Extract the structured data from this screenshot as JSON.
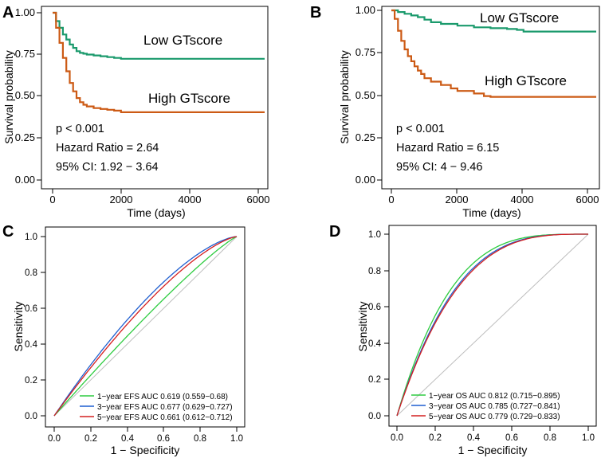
{
  "panels": {
    "A": "A",
    "B": "B",
    "C": "C",
    "D": "D"
  },
  "chart_data": [
    {
      "id": "A",
      "type": "line",
      "subtype": "kaplan-meier",
      "xlabel": "Time (days)",
      "ylabel": "Survival probability",
      "xlim": [
        0,
        6200
      ],
      "ylim": [
        0,
        1
      ],
      "xticks": [
        "0",
        "2000",
        "4000",
        "6000"
      ],
      "yticks": [
        "0.00",
        "0.25",
        "0.50",
        "0.75",
        "1.00"
      ],
      "series": [
        {
          "name": "Low GTscore",
          "color": "#1a9a6c",
          "x": [
            0,
            100,
            200,
            300,
            400,
            500,
            600,
            700,
            800,
            900,
            1000,
            1200,
            1400,
            1600,
            1800,
            2000,
            3000,
            4000,
            5000,
            6200
          ],
          "y": [
            1.0,
            0.95,
            0.91,
            0.87,
            0.84,
            0.81,
            0.79,
            0.77,
            0.76,
            0.755,
            0.75,
            0.745,
            0.74,
            0.735,
            0.73,
            0.725,
            0.725,
            0.725,
            0.725,
            0.725
          ]
        },
        {
          "name": "High GTscore",
          "color": "#cc5a14",
          "x": [
            0,
            100,
            200,
            300,
            400,
            500,
            600,
            700,
            800,
            900,
            1000,
            1200,
            1400,
            1600,
            1800,
            2000,
            3000,
            4000,
            5000,
            6200
          ],
          "y": [
            1.0,
            0.91,
            0.82,
            0.73,
            0.65,
            0.58,
            0.53,
            0.49,
            0.465,
            0.45,
            0.44,
            0.43,
            0.425,
            0.42,
            0.415,
            0.405,
            0.405,
            0.405,
            0.405,
            0.405
          ]
        }
      ],
      "annotations": [
        "p < 0.001",
        "Hazard Ratio = 2.64",
        "95% CI: 1.92 − 3.64"
      ]
    },
    {
      "id": "B",
      "type": "line",
      "subtype": "kaplan-meier",
      "xlabel": "Time (days)",
      "ylabel": "Survival probability",
      "xlim": [
        0,
        6200
      ],
      "ylim": [
        0,
        1
      ],
      "xticks": [
        "0",
        "2000",
        "4000",
        "6000"
      ],
      "yticks": [
        "0.00",
        "0.25",
        "0.50",
        "0.75",
        "1.00"
      ],
      "series": [
        {
          "name": "Low GTscore",
          "color": "#1a9a6c",
          "x": [
            0,
            200,
            400,
            600,
            800,
            1000,
            1200,
            1500,
            2000,
            2500,
            3000,
            3500,
            3800,
            4000,
            5000,
            6200
          ],
          "y": [
            1.0,
            0.99,
            0.98,
            0.97,
            0.96,
            0.945,
            0.93,
            0.92,
            0.91,
            0.9,
            0.895,
            0.89,
            0.885,
            0.875,
            0.875,
            0.875
          ]
        },
        {
          "name": "High GTscore",
          "color": "#cc5a14",
          "x": [
            0,
            100,
            200,
            300,
            400,
            500,
            600,
            700,
            800,
            900,
            1000,
            1200,
            1500,
            1800,
            2000,
            2500,
            2800,
            3000,
            4000,
            5000,
            6200
          ],
          "y": [
            1.0,
            0.95,
            0.88,
            0.82,
            0.77,
            0.73,
            0.7,
            0.67,
            0.645,
            0.625,
            0.6,
            0.58,
            0.56,
            0.54,
            0.525,
            0.51,
            0.495,
            0.49,
            0.49,
            0.49,
            0.49
          ]
        }
      ],
      "annotations": [
        "p < 0.001",
        "Hazard Ratio = 6.15",
        "95% CI: 4 − 9.46"
      ]
    },
    {
      "id": "C",
      "type": "line",
      "subtype": "roc",
      "xlabel": "1 − Specificity",
      "ylabel": "Sensitivity",
      "xlim": [
        0,
        1
      ],
      "ylim": [
        0,
        1
      ],
      "xticks": [
        "0.0",
        "0.2",
        "0.4",
        "0.6",
        "0.8",
        "1.0"
      ],
      "yticks": [
        "0.0",
        "0.2",
        "0.4",
        "0.6",
        "0.8",
        "1.0"
      ],
      "series": [
        {
          "name": "1−year EFS AUC 0.619 (0.559−0.68)",
          "color": "#2ecc40",
          "shape": 1.15,
          "auc": 0.619
        },
        {
          "name": "3−year EFS AUC 0.677 (0.629−0.727)",
          "color": "#1f5fd0",
          "shape": 1.5,
          "auc": 0.677
        },
        {
          "name": "5−year EFS AUC 0.661 (0.612−0.712)",
          "color": "#d42020",
          "shape": 1.4,
          "auc": 0.661
        }
      ],
      "legend": "bottom-right"
    },
    {
      "id": "D",
      "type": "line",
      "subtype": "roc",
      "xlabel": "1 − Specificity",
      "ylabel": "Sensitivity",
      "xlim": [
        0,
        1
      ],
      "ylim": [
        0,
        1
      ],
      "xticks": [
        "0.0",
        "0.2",
        "0.4",
        "0.6",
        "0.8",
        "1.0"
      ],
      "yticks": [
        "0.0",
        "0.2",
        "0.4",
        "0.6",
        "0.8",
        "1.0"
      ],
      "series": [
        {
          "name": "1−year OS AUC 0.812 (0.715−0.895)",
          "color": "#2ecc40",
          "shape": 3.6,
          "auc": 0.812
        },
        {
          "name": "3−year OS AUC 0.785 (0.727−0.841)",
          "color": "#1f5fd0",
          "shape": 3.3,
          "auc": 0.785
        },
        {
          "name": "5−year OS AUC 0.779 (0.729−0.833)",
          "color": "#d42020",
          "shape": 3.2,
          "auc": 0.779
        }
      ],
      "legend": "bottom-right"
    }
  ]
}
